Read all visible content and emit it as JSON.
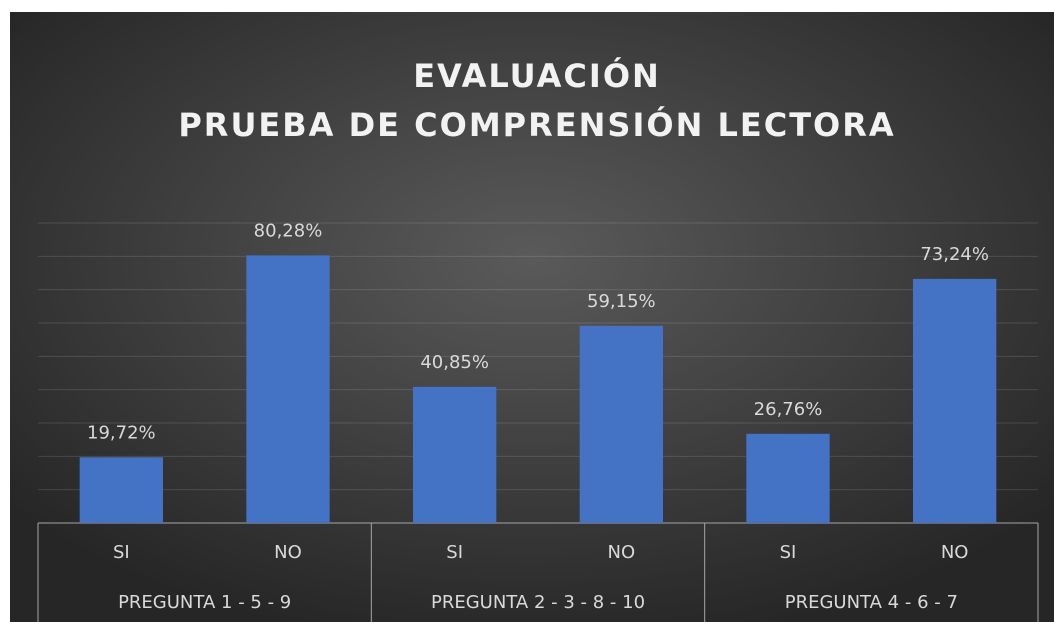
{
  "chart_data": {
    "type": "bar",
    "title": [
      "EVALUACIÓN",
      "PRUEBA DE COMPRENSIÓN LECTORA"
    ],
    "categories": [
      "SI",
      "NO",
      "SI",
      "NO",
      "SI",
      "NO"
    ],
    "groups": [
      "PREGUNTA 1 - 5 - 9",
      "PREGUNTA 2 - 3 - 8 - 10",
      "PREGUNTA 4 - 6 - 7"
    ],
    "values": [
      19.72,
      80.28,
      40.85,
      59.15,
      26.76,
      73.24
    ],
    "value_labels": [
      "19,72%",
      "80,28%",
      "40,85%",
      "59,15%",
      "26,76%",
      "73,24%"
    ],
    "color": "#4472c4",
    "ylim": [
      0,
      90
    ],
    "yticks": [
      0,
      10,
      20,
      30,
      40,
      50,
      60,
      70,
      80,
      90
    ],
    "grid": true
  }
}
